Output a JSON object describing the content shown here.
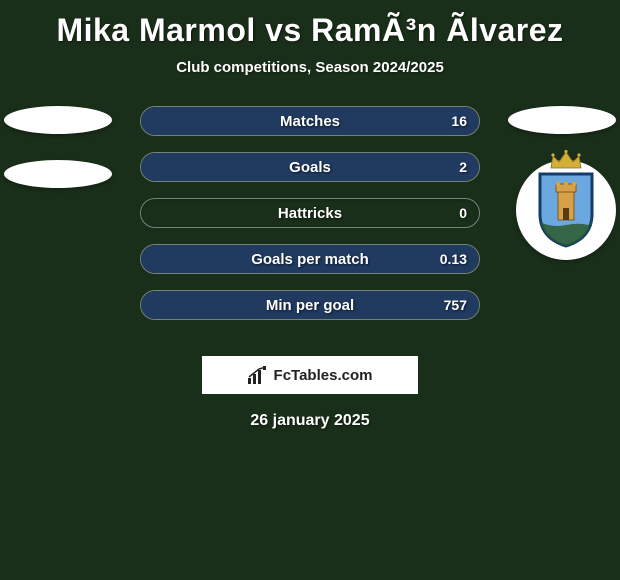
{
  "title": "Mika Marmol vs RamÃ³n Ãlvarez",
  "subtitle": "Club competitions, Season 2024/2025",
  "date": "26 january 2025",
  "footer_brand": "FcTables.com",
  "background_color": "#1a2f1a",
  "left_player_color": "#3b7a3b",
  "right_player_color": "#203a60",
  "bar_border_color": "rgba(180,190,180,0.6)",
  "text_color": "#ffffff",
  "bars": [
    {
      "label": "Matches",
      "left_val": "",
      "right_val": "16",
      "left_pct": 0,
      "right_pct": 100
    },
    {
      "label": "Goals",
      "left_val": "",
      "right_val": "2",
      "left_pct": 0,
      "right_pct": 100
    },
    {
      "label": "Hattricks",
      "left_val": "",
      "right_val": "0",
      "left_pct": 0,
      "right_pct": 0
    },
    {
      "label": "Goals per match",
      "left_val": "",
      "right_val": "0.13",
      "left_pct": 0,
      "right_pct": 100
    },
    {
      "label": "Min per goal",
      "left_val": "",
      "right_val": "757",
      "left_pct": 0,
      "right_pct": 100
    }
  ],
  "crest": {
    "shield_fill": "#6ca8e0",
    "shield_border": "#133b6b",
    "tower_color": "#d9a04a",
    "crown_color": "#d4af37"
  }
}
